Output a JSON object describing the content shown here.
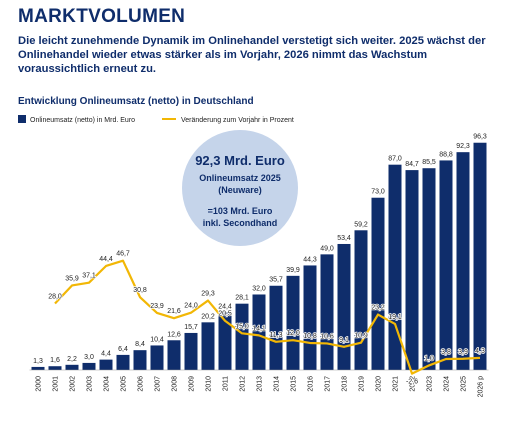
{
  "header": {
    "title": "MARKTVOLUMEN",
    "text": "Die leicht zunehmende Dynamik im Onlinehandel verstetigt sich weiter. 2025 wächst der Onlinehandel wieder etwas stärker als im Vorjahr, 2026 nimmt das Wachstum voraussichtlich erneut zu."
  },
  "chart_data": {
    "type": "bar",
    "title": "Entwicklung Onlineumsatz (netto) in Deutschland",
    "categories": [
      "2000",
      "2001",
      "2002",
      "2003",
      "2004",
      "2005",
      "2006",
      "2007",
      "2008",
      "2009",
      "2010",
      "2011",
      "2012",
      "2013",
      "2014",
      "2015",
      "2016",
      "2017",
      "2018",
      "2019",
      "2020",
      "2021",
      "2022",
      "2023",
      "2024",
      "2025",
      "2026 p"
    ],
    "series": [
      {
        "name": "Onlineumsatz (netto) in Mrd. Euro",
        "color": "#0f2d6b",
        "values": [
          1.3,
          1.6,
          2.2,
          3.0,
          4.4,
          6.4,
          8.4,
          10.4,
          12.6,
          15.7,
          20.2,
          24.4,
          28.1,
          32.0,
          35.7,
          39.9,
          44.3,
          49.0,
          53.4,
          59.2,
          73.0,
          87.0,
          84.7,
          85.5,
          88.8,
          92.3,
          96.3
        ],
        "value_labels": [
          "1,3",
          "1,6",
          "2,2",
          "3,0",
          "4,4",
          "6,4",
          "8,4",
          "10,4",
          "12,6",
          "15,7",
          "20,2",
          "24,4",
          "28,1",
          "32,0",
          "35,7",
          "39,9",
          "44,3",
          "49,0",
          "53,4",
          "59,2",
          "73,0",
          "87,0",
          "84,7",
          "85,5",
          "88,8",
          "92,3",
          "96,3"
        ]
      },
      {
        "name": "Veränderung zum Vorjahr in Prozent",
        "color": "#f2b705",
        "type": "line",
        "axis": "y2",
        "values": [
          null,
          28.0,
          35.9,
          37.1,
          44.4,
          46.7,
          30.8,
          23.9,
          21.6,
          24.0,
          29.3,
          20.5,
          15.0,
          14.1,
          11.3,
          12.0,
          10.8,
          10.6,
          9.1,
          10.9,
          23.2,
          19.1,
          -2.6,
          1.0,
          3.8,
          3.9,
          4.3
        ],
        "value_labels": [
          null,
          "28,0",
          "35,9",
          "37,1",
          "44,4",
          "46,7",
          "30,8",
          "23,9",
          "21,6",
          "24,0",
          "29,3",
          "20,5",
          "15,0",
          "14,1",
          "11,3",
          "12,0",
          "10,8",
          "10,6",
          "9,1",
          "10,9",
          "23,2",
          "19,1",
          "-2,6",
          "1,0",
          "3,8",
          "3,9",
          "4,3"
        ]
      }
    ],
    "ylim": [
      0,
      100
    ],
    "y2lim": [
      -1,
      102
    ],
    "annotation": {
      "lines": [
        "92,3 Mrd. Euro",
        "Onlineumsatz 2025",
        "(Neuware)",
        "=103 Mrd. Euro",
        "inkl. Secondhand"
      ]
    }
  }
}
